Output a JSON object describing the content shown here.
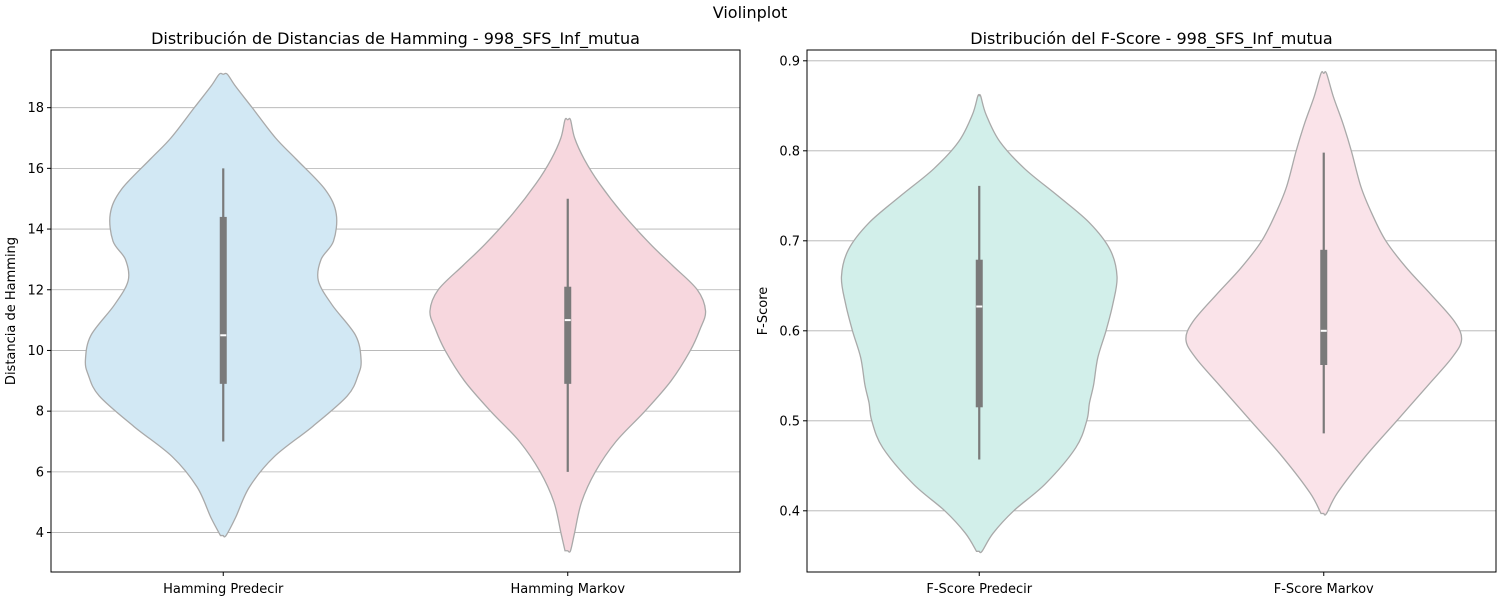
{
  "figure": {
    "suptitle": "Violinplot"
  },
  "chart_data": [
    {
      "type": "violin",
      "title": "Distribución de Distancias de Hamming - 998_SFS_Inf_mutua",
      "xlabel": "",
      "ylabel": "Distancia de Hamming",
      "ylim": [
        2.7,
        19.9
      ],
      "yticks": [
        4,
        6,
        8,
        10,
        12,
        14,
        16,
        18
      ],
      "ytick_labels": [
        "4",
        "6",
        "8",
        "10",
        "12",
        "14",
        "16",
        "18"
      ],
      "grid": "y",
      "categories": [
        "Hamming Predecir",
        "Hamming Markov"
      ],
      "series": [
        {
          "category": "Hamming Predecir",
          "color": "#d2e8f4",
          "median": 10.5,
          "q1": 8.9,
          "q3": 14.4,
          "whisker_low": 7.0,
          "whisker_high": 16.0,
          "min_extent": 3.9,
          "max_extent": 19.1,
          "density": [
            [
              3.9,
              0.02
            ],
            [
              4.5,
              0.09
            ],
            [
              5.5,
              0.19
            ],
            [
              6.5,
              0.37
            ],
            [
              7.5,
              0.65
            ],
            [
              8.5,
              0.9
            ],
            [
              9.2,
              0.98
            ],
            [
              9.7,
              1.0
            ],
            [
              10.5,
              0.96
            ],
            [
              11.5,
              0.79
            ],
            [
              12.3,
              0.69
            ],
            [
              13.0,
              0.71
            ],
            [
              13.6,
              0.8
            ],
            [
              14.5,
              0.82
            ],
            [
              15.3,
              0.74
            ],
            [
              16.3,
              0.53
            ],
            [
              17.0,
              0.38
            ],
            [
              18.0,
              0.21
            ],
            [
              18.7,
              0.09
            ],
            [
              19.1,
              0.03
            ]
          ]
        },
        {
          "category": "Hamming Markov",
          "color": "#f7d7de",
          "median": 11.0,
          "q1": 8.9,
          "q3": 12.1,
          "whisker_low": 6.0,
          "whisker_high": 15.0,
          "min_extent": 3.4,
          "max_extent": 17.6,
          "density": [
            [
              3.4,
              0.02
            ],
            [
              4.0,
              0.05
            ],
            [
              5.0,
              0.1
            ],
            [
              6.0,
              0.2
            ],
            [
              7.0,
              0.35
            ],
            [
              8.0,
              0.56
            ],
            [
              9.0,
              0.75
            ],
            [
              10.0,
              0.89
            ],
            [
              10.7,
              0.96
            ],
            [
              11.3,
              1.0
            ],
            [
              12.0,
              0.94
            ],
            [
              12.8,
              0.76
            ],
            [
              13.5,
              0.6
            ],
            [
              14.5,
              0.4
            ],
            [
              15.5,
              0.23
            ],
            [
              16.3,
              0.12
            ],
            [
              17.0,
              0.05
            ],
            [
              17.6,
              0.02
            ]
          ]
        }
      ]
    },
    {
      "type": "violin",
      "title": "Distribución del F-Score - 998_SFS_Inf_mutua",
      "xlabel": "",
      "ylabel": "F-Score",
      "ylim": [
        0.332,
        0.912
      ],
      "yticks": [
        0.4,
        0.5,
        0.6,
        0.7,
        0.8,
        0.9
      ],
      "ytick_labels": [
        "0.4",
        "0.5",
        "0.6",
        "0.7",
        "0.8",
        "0.9"
      ],
      "grid": "y",
      "categories": [
        "F-Score Predecir",
        "F-Score Markov"
      ],
      "series": [
        {
          "category": "F-Score Predecir",
          "color": "#d2efea",
          "median": 0.627,
          "q1": 0.515,
          "q3": 0.679,
          "whisker_low": 0.457,
          "whisker_high": 0.761,
          "min_extent": 0.355,
          "max_extent": 0.861,
          "density": [
            [
              0.355,
              0.02
            ],
            [
              0.375,
              0.1
            ],
            [
              0.4,
              0.25
            ],
            [
              0.43,
              0.48
            ],
            [
              0.47,
              0.7
            ],
            [
              0.5,
              0.78
            ],
            [
              0.52,
              0.8
            ],
            [
              0.54,
              0.83
            ],
            [
              0.57,
              0.86
            ],
            [
              0.6,
              0.92
            ],
            [
              0.63,
              0.97
            ],
            [
              0.66,
              1.0
            ],
            [
              0.69,
              0.95
            ],
            [
              0.72,
              0.8
            ],
            [
              0.75,
              0.57
            ],
            [
              0.78,
              0.33
            ],
            [
              0.81,
              0.15
            ],
            [
              0.84,
              0.05
            ],
            [
              0.861,
              0.01
            ]
          ]
        },
        {
          "category": "F-Score Markov",
          "color": "#fae3e9",
          "median": 0.6,
          "q1": 0.562,
          "q3": 0.69,
          "whisker_low": 0.486,
          "whisker_high": 0.798,
          "min_extent": 0.397,
          "max_extent": 0.886,
          "density": [
            [
              0.397,
              0.02
            ],
            [
              0.42,
              0.1
            ],
            [
              0.46,
              0.3
            ],
            [
              0.5,
              0.53
            ],
            [
              0.54,
              0.76
            ],
            [
              0.57,
              0.93
            ],
            [
              0.59,
              1.0
            ],
            [
              0.61,
              0.95
            ],
            [
              0.64,
              0.78
            ],
            [
              0.67,
              0.6
            ],
            [
              0.7,
              0.45
            ],
            [
              0.73,
              0.35
            ],
            [
              0.76,
              0.27
            ],
            [
              0.8,
              0.2
            ],
            [
              0.83,
              0.14
            ],
            [
              0.86,
              0.07
            ],
            [
              0.886,
              0.02
            ]
          ]
        }
      ]
    }
  ]
}
